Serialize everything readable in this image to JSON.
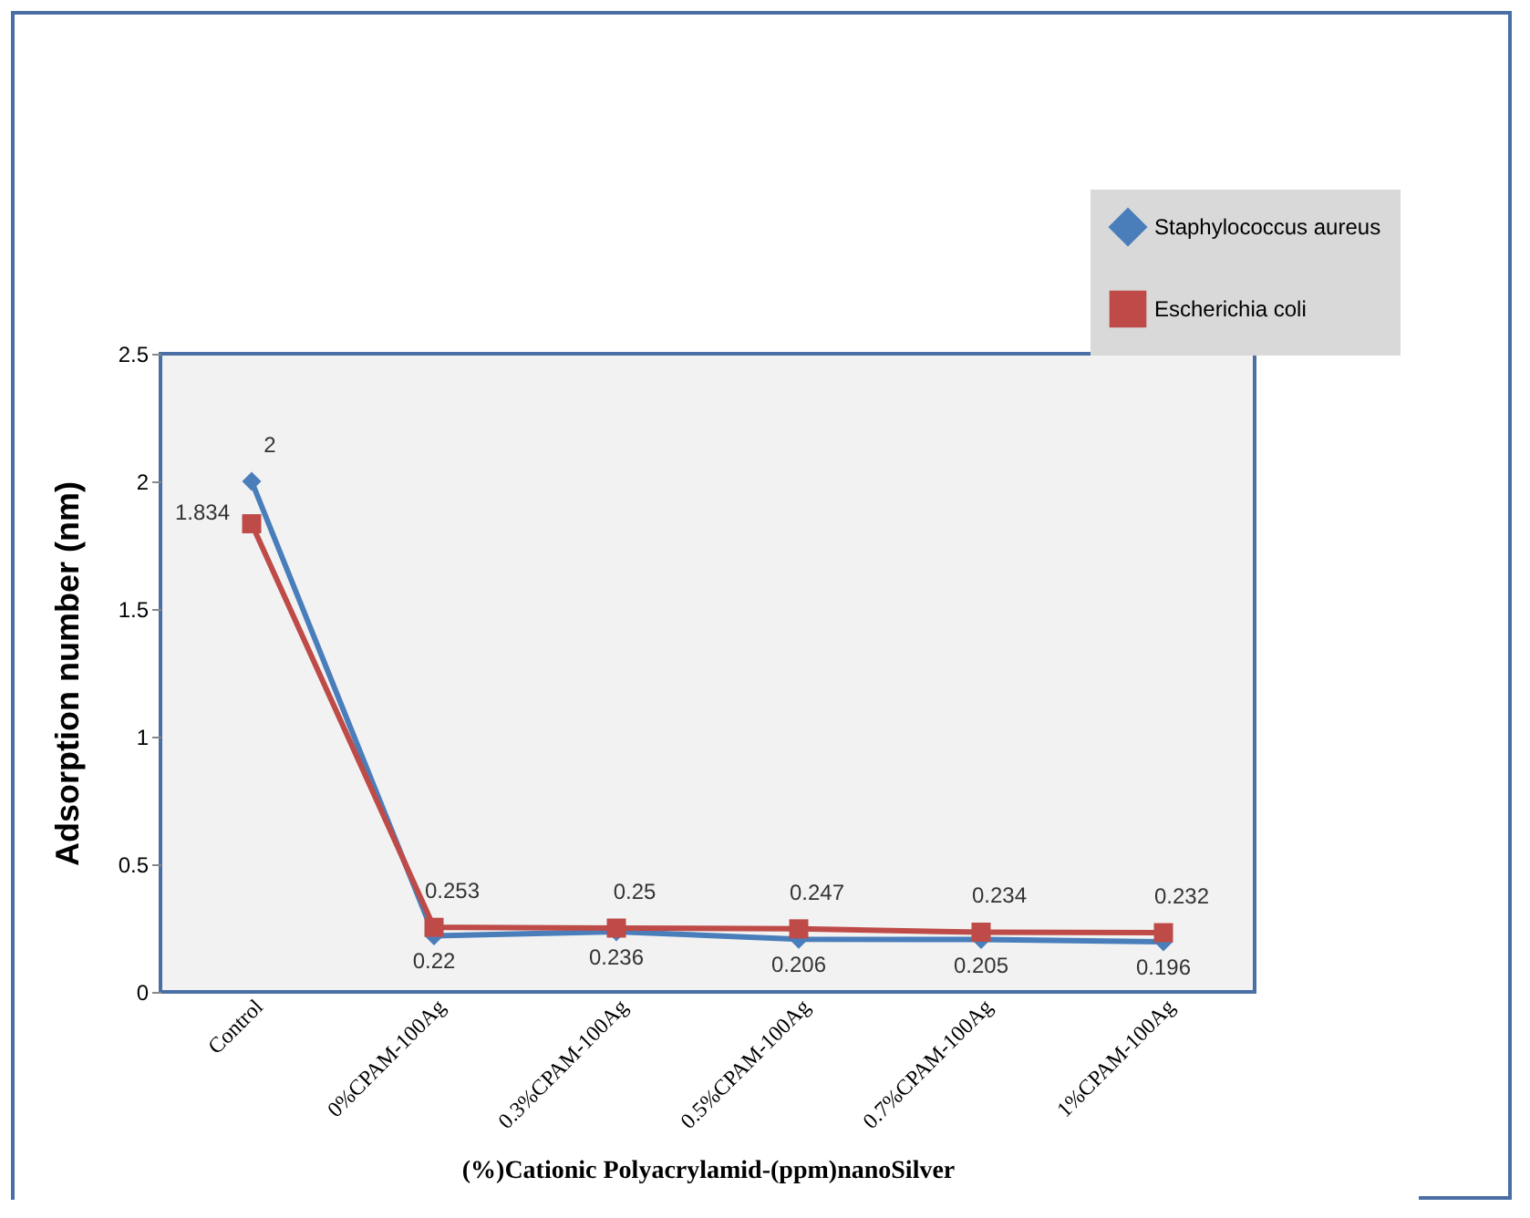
{
  "chart_data": {
    "type": "line",
    "xlabel": "(%)Cationic Polyacrylamid-(ppm)nanoSilver",
    "ylabel": "Adsorption number (nm)",
    "categories": [
      "Control",
      "0%CPAM-100Ag",
      "0.3%CPAM-100Ag",
      "0.5%CPAM-100Ag",
      "0.7%CPAM-100Ag",
      "1%CPAM-100Ag"
    ],
    "series": [
      {
        "name": "Staphylococcus aureus",
        "color": "#4a7ebb",
        "marker": "diamond",
        "values": [
          2,
          0.22,
          0.236,
          0.206,
          0.205,
          0.196
        ],
        "value_labels": [
          "2",
          "0.22",
          "0.236",
          "0.206",
          "0.205",
          "0.196"
        ]
      },
      {
        "name": "Escherichia coli",
        "color": "#be4b48",
        "marker": "square",
        "values": [
          1.834,
          0.253,
          0.25,
          0.247,
          0.234,
          0.232
        ],
        "value_labels": [
          "1.834",
          "0.253",
          "0.25",
          "0.247",
          "0.234",
          "0.232"
        ]
      }
    ],
    "ylim": [
      0,
      2.5
    ],
    "yticks": [
      0,
      0.5,
      1,
      1.5,
      2,
      2.5
    ],
    "grid": false,
    "legend": "top right"
  }
}
